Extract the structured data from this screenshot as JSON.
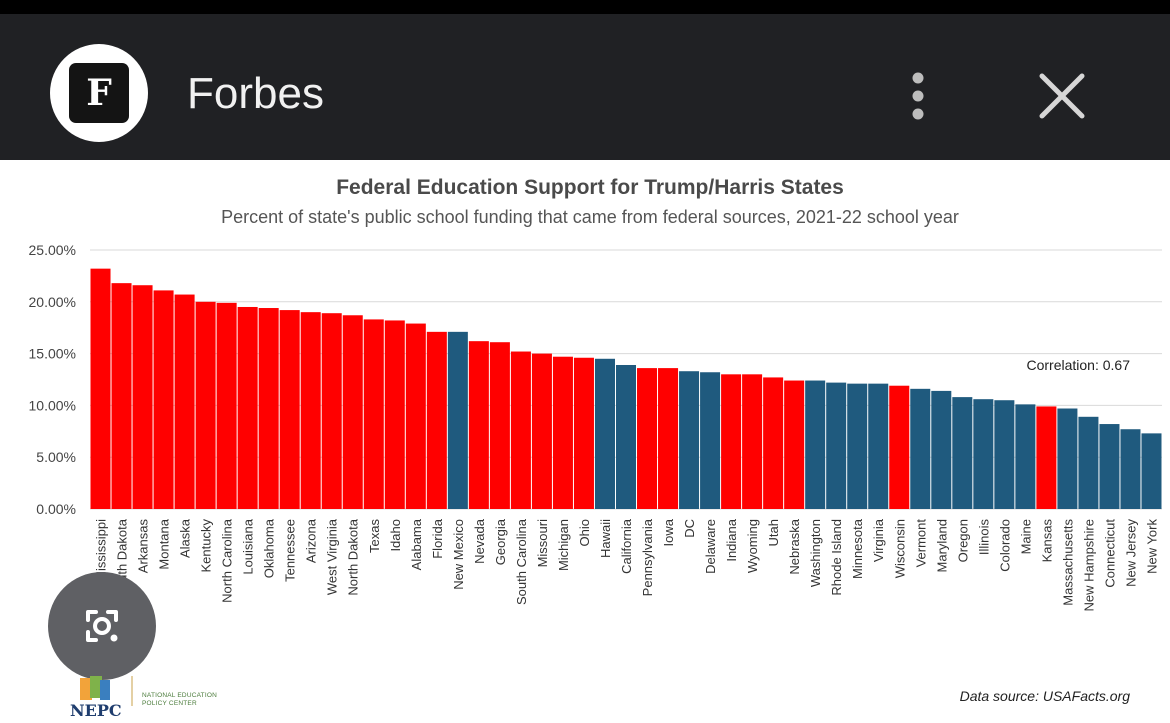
{
  "app": {
    "logo_letter": "F",
    "title": "Forbes"
  },
  "icons": {
    "menu": "more-vert-icon",
    "close": "close-icon",
    "lens": "google-lens-icon"
  },
  "colors": {
    "appbar": "#202124",
    "trump": "#ff0000",
    "harris": "#1f5a7e"
  },
  "chart_data": {
    "type": "bar",
    "title": "Federal Education Support for Trump/Harris States",
    "subtitle": "Percent of state's public school funding that came from federal sources, 2021-22 school year",
    "xlabel": "",
    "ylabel": "",
    "ylim": [
      0,
      25
    ],
    "yticks": [
      "0.00%",
      "5.00%",
      "10.00%",
      "15.00%",
      "20.00%",
      "25.00%"
    ],
    "grid": true,
    "annotation": "Correlation: 0.67",
    "categories": [
      "Mississippi",
      "South Dakota",
      "Arkansas",
      "Montana",
      "Alaska",
      "Kentucky",
      "North Carolina",
      "Louisiana",
      "Oklahoma",
      "Tennessee",
      "Arizona",
      "West Virginia",
      "North Dakota",
      "Texas",
      "Idaho",
      "Alabama",
      "Florida",
      "New Mexico",
      "Nevada",
      "Georgia",
      "South Carolina",
      "Missouri",
      "Michigan",
      "Ohio",
      "Hawaii",
      "California",
      "Pennsylvania",
      "Iowa",
      "DC",
      "Delaware",
      "Indiana",
      "Wyoming",
      "Utah",
      "Nebraska",
      "Washington",
      "Rhode Island",
      "Minnesota",
      "Virginia",
      "Wisconsin",
      "Vermont",
      "Maryland",
      "Oregon",
      "Illinois",
      "Colorado",
      "Maine",
      "Kansas",
      "Massachusetts",
      "New Hampshire",
      "Connecticut",
      "New Jersey",
      "New York"
    ],
    "values": [
      23.2,
      21.8,
      21.6,
      21.1,
      20.7,
      20.0,
      19.9,
      19.5,
      19.4,
      19.2,
      19.0,
      18.9,
      18.7,
      18.3,
      18.2,
      17.9,
      17.1,
      17.1,
      16.2,
      16.1,
      15.2,
      15.0,
      14.7,
      14.6,
      14.5,
      13.9,
      13.6,
      13.6,
      13.3,
      13.2,
      13.0,
      13.0,
      12.7,
      12.4,
      12.4,
      12.2,
      12.1,
      12.1,
      11.9,
      11.6,
      11.4,
      10.8,
      10.6,
      10.5,
      10.1,
      9.9,
      9.7,
      8.9,
      8.2,
      7.7,
      7.3
    ],
    "colors": [
      "#ff0000",
      "#ff0000",
      "#ff0000",
      "#ff0000",
      "#ff0000",
      "#ff0000",
      "#ff0000",
      "#ff0000",
      "#ff0000",
      "#ff0000",
      "#ff0000",
      "#ff0000",
      "#ff0000",
      "#ff0000",
      "#ff0000",
      "#ff0000",
      "#ff0000",
      "#1f5a7e",
      "#ff0000",
      "#ff0000",
      "#ff0000",
      "#ff0000",
      "#ff0000",
      "#ff0000",
      "#1f5a7e",
      "#1f5a7e",
      "#ff0000",
      "#ff0000",
      "#1f5a7e",
      "#1f5a7e",
      "#ff0000",
      "#ff0000",
      "#ff0000",
      "#ff0000",
      "#1f5a7e",
      "#1f5a7e",
      "#1f5a7e",
      "#1f5a7e",
      "#ff0000",
      "#1f5a7e",
      "#1f5a7e",
      "#1f5a7e",
      "#1f5a7e",
      "#1f5a7e",
      "#1f5a7e",
      "#ff0000",
      "#1f5a7e",
      "#1f5a7e",
      "#1f5a7e",
      "#1f5a7e",
      "#1f5a7e"
    ]
  },
  "footer": {
    "org_abbrev": "NEPC",
    "org_name_line1": "NATIONAL EDUCATION",
    "org_name_line2": "POLICY CENTER",
    "source": "Data source:  USAFacts.org"
  }
}
